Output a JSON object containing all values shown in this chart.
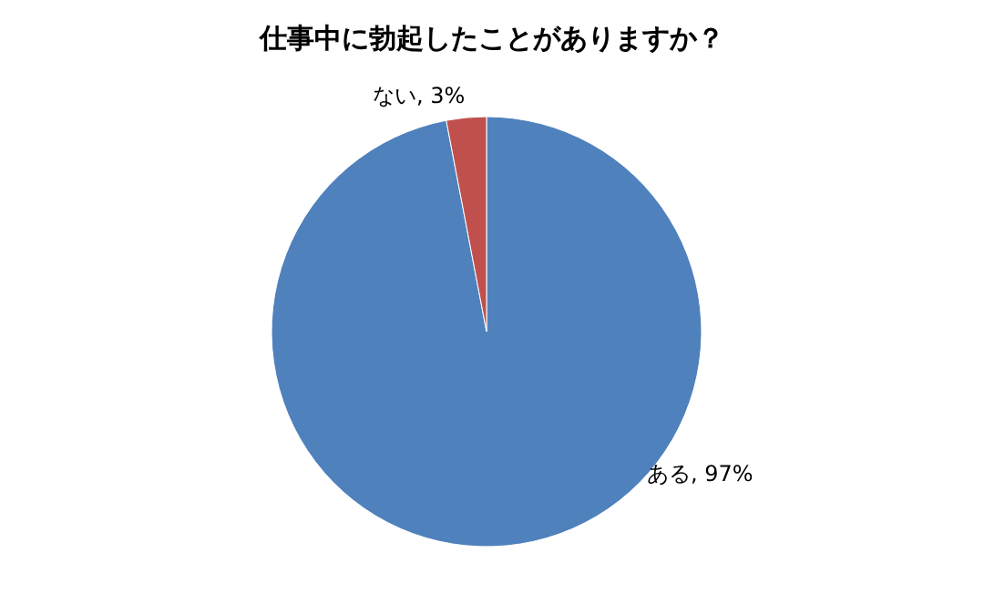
{
  "chart_data": {
    "type": "pie",
    "title": "仕事中に勃起したことがありますか？",
    "categories": [
      "ある",
      "ない"
    ],
    "values": [
      97,
      3
    ],
    "colors": [
      "#4f81bd",
      "#c0504d"
    ],
    "value_labels": [
      ", 97%",
      ", 3%"
    ]
  }
}
